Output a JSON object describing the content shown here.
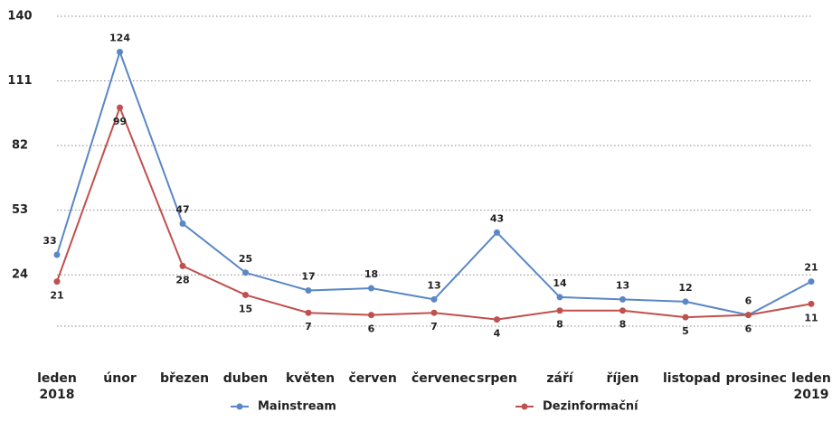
{
  "chart_data": {
    "type": "line",
    "categories": [
      "leden 2018",
      "únor",
      "březen",
      "duben",
      "květen",
      "červen",
      "červenec",
      "srpen",
      "září",
      "říjen",
      "listopad",
      "prosinec",
      "leden 2019"
    ],
    "series": [
      {
        "name": "Mainstream",
        "color": "#5a87c5",
        "values": [
          33,
          124,
          47,
          25,
          17,
          18,
          13,
          43,
          14,
          13,
          12,
          6,
          21
        ]
      },
      {
        "name": "Dezinformační",
        "color": "#c0504d",
        "values": [
          21,
          99,
          28,
          15,
          7,
          6,
          7,
          4,
          8,
          8,
          5,
          6,
          11
        ]
      }
    ],
    "ylim": [
      1,
      140
    ],
    "yticks": [
      24,
      53,
      82,
      111,
      140
    ],
    "grid": true
  }
}
